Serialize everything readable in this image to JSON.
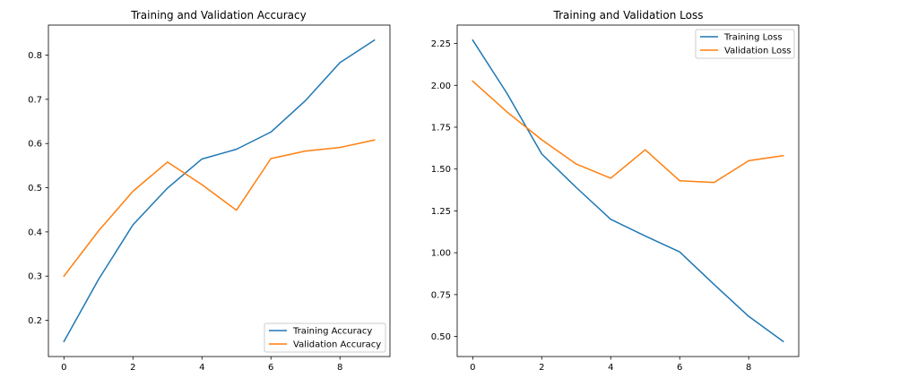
{
  "chart_data": [
    {
      "type": "line",
      "title": "Training and Validation Accuracy",
      "xlabel": "",
      "ylabel": "",
      "x": [
        0,
        1,
        2,
        3,
        4,
        5,
        6,
        7,
        8,
        9
      ],
      "xlim": [
        -0.45,
        9.45
      ],
      "ylim": [
        0.118,
        0.868
      ],
      "xticks": [
        0,
        2,
        4,
        6,
        8
      ],
      "yticks": [
        0.2,
        0.3,
        0.4,
        0.5,
        0.6,
        0.7,
        0.8
      ],
      "legend_position": "lower right",
      "grid": false,
      "series": [
        {
          "name": "Training Accuracy",
          "color": "#1f77b4",
          "values": [
            0.152,
            0.292,
            0.416,
            0.499,
            0.565,
            0.587,
            0.626,
            0.697,
            0.783,
            0.834
          ]
        },
        {
          "name": "Validation Accuracy",
          "color": "#ff7f0e",
          "values": [
            0.3,
            0.402,
            0.492,
            0.558,
            0.507,
            0.449,
            0.566,
            0.583,
            0.591,
            0.608
          ]
        }
      ]
    },
    {
      "type": "line",
      "title": "Training and Validation Loss",
      "xlabel": "",
      "ylabel": "",
      "x": [
        0,
        1,
        2,
        3,
        4,
        5,
        6,
        7,
        8,
        9
      ],
      "xlim": [
        -0.45,
        9.45
      ],
      "ylim": [
        0.38,
        2.36
      ],
      "xticks": [
        0,
        2,
        4,
        6,
        8
      ],
      "yticks": [
        0.5,
        0.75,
        1.0,
        1.25,
        1.5,
        1.75,
        2.0,
        2.25
      ],
      "legend_position": "upper right",
      "grid": false,
      "series": [
        {
          "name": "Training Loss",
          "color": "#1f77b4",
          "values": [
            2.27,
            1.95,
            1.59,
            1.39,
            1.2,
            1.1,
            1.005,
            0.81,
            0.62,
            0.47
          ]
        },
        {
          "name": "Validation Loss",
          "color": "#ff7f0e",
          "values": [
            2.025,
            1.84,
            1.675,
            1.53,
            1.445,
            1.615,
            1.43,
            1.42,
            1.55,
            1.58
          ]
        }
      ]
    }
  ]
}
